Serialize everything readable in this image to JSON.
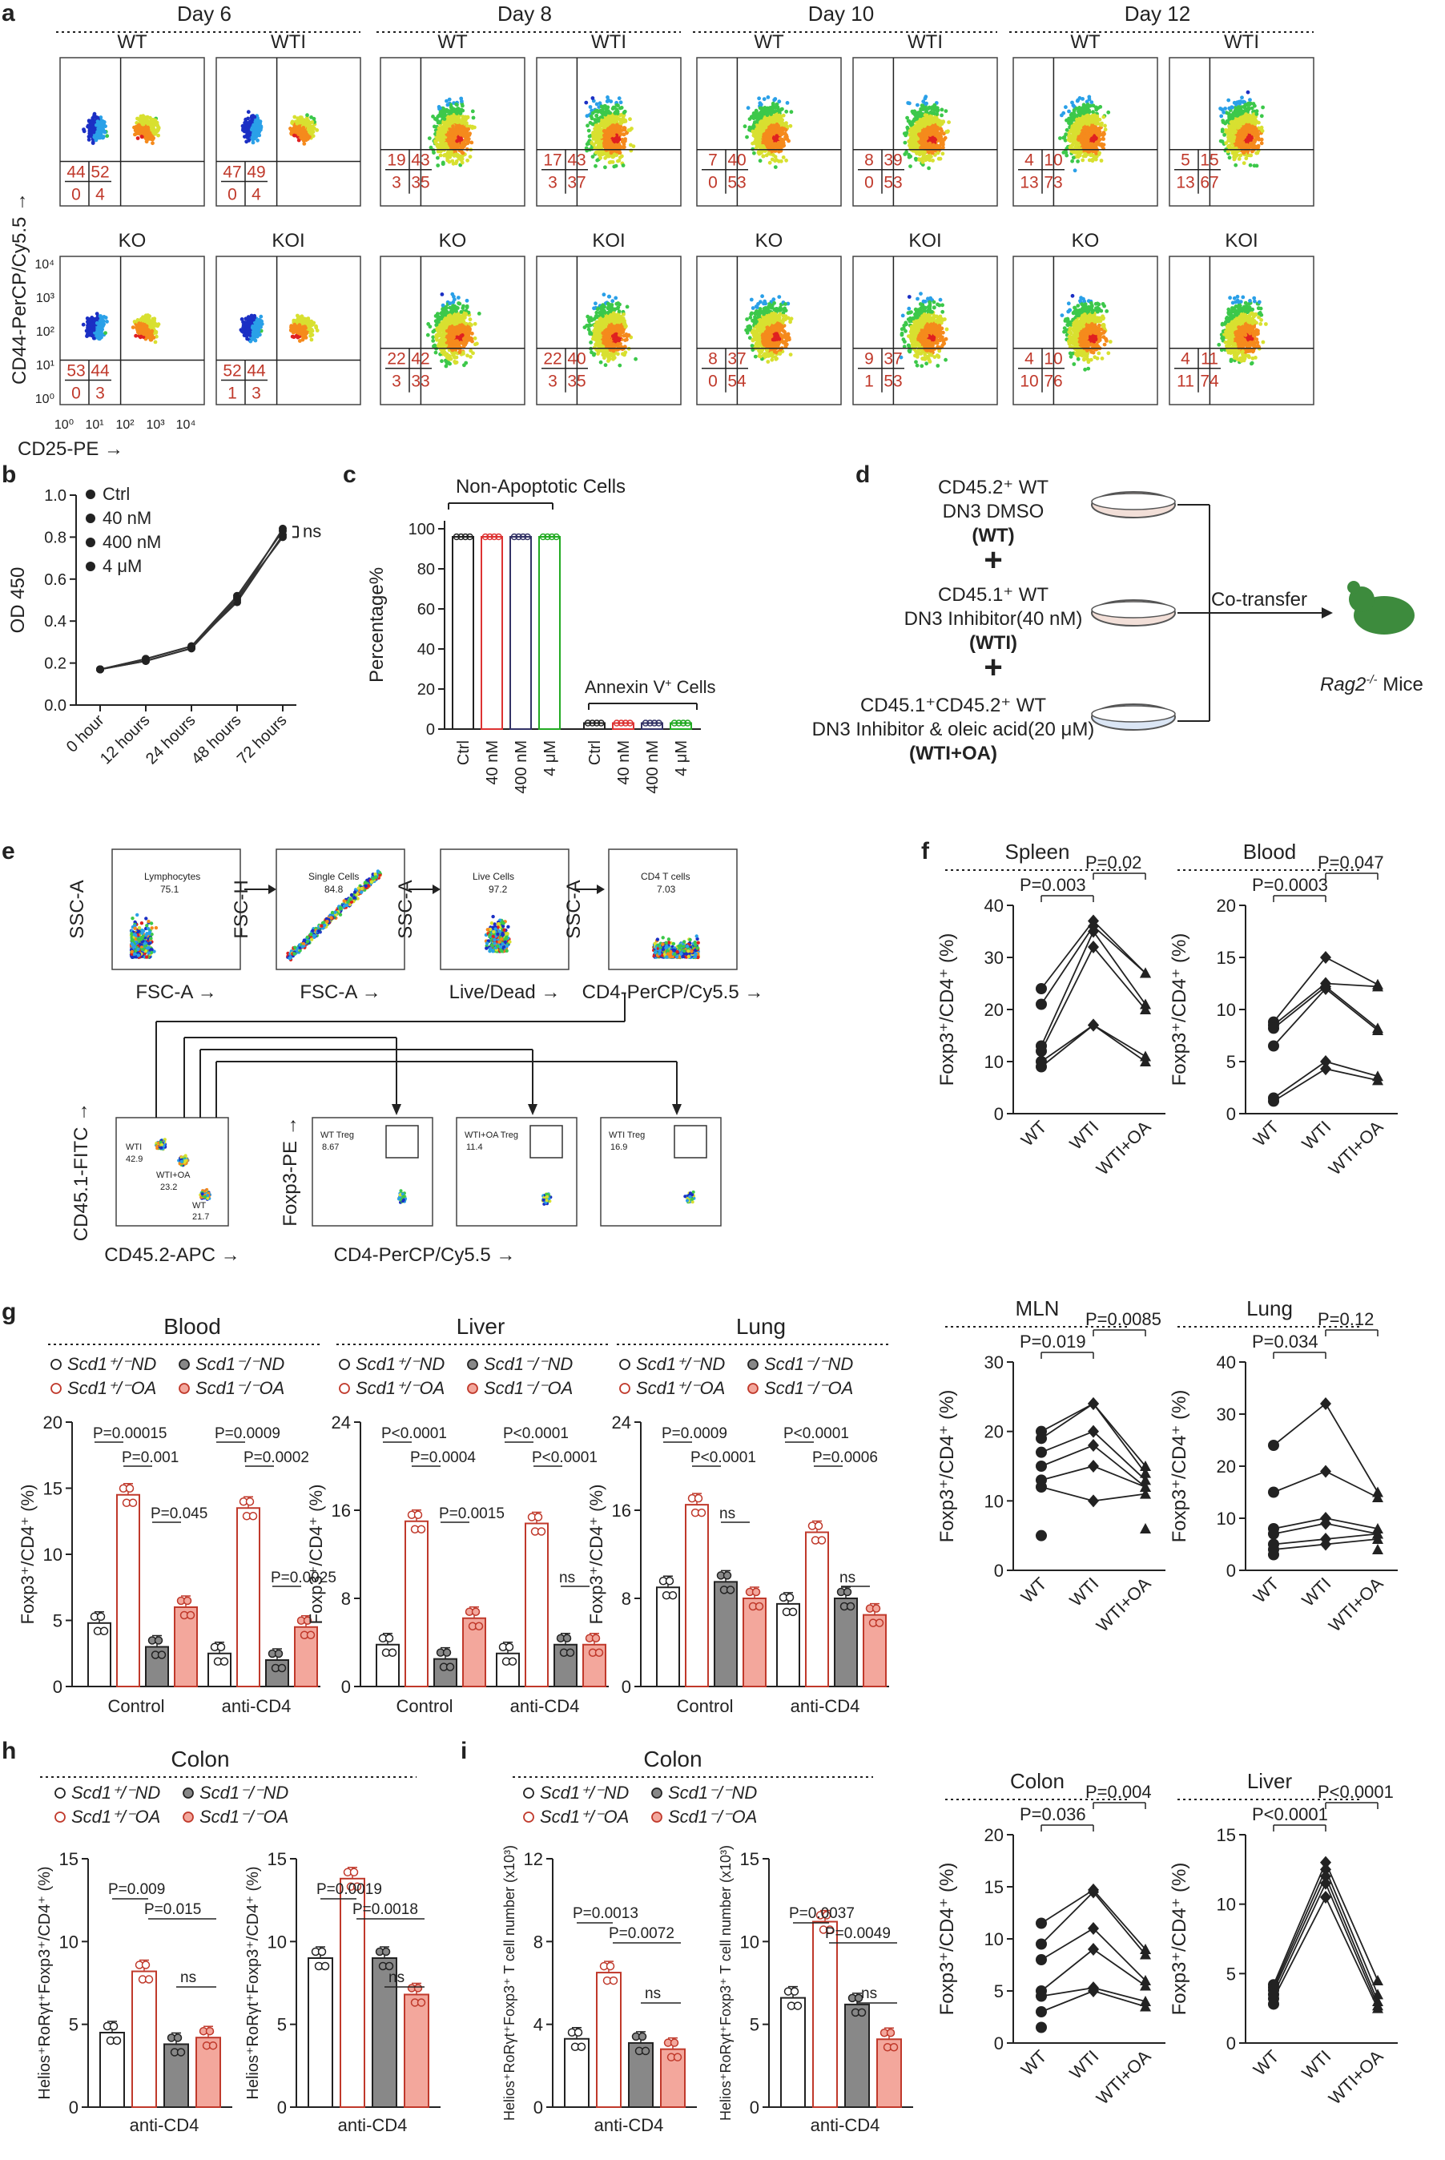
{
  "panel_letters": {
    "a": "a",
    "b": "b",
    "c": "c",
    "d": "d",
    "e": "e",
    "f": "f",
    "g": "g",
    "h": "h",
    "i": "i"
  },
  "colors": {
    "wt": "#ffffff",
    "ko": "#c0392b",
    "oa_grey": "#888888",
    "oa_red": "#f3a79c",
    "flow_red": "#e02020",
    "flow_blue": "#1f2fbf",
    "flow_green": "#2f9e44",
    "mouse": "#3d8b3d"
  },
  "panel_a": {
    "days": [
      "Day 6",
      "Day 8",
      "Day 10",
      "Day 12"
    ],
    "row1_labels": [
      "WT",
      "WTI",
      "WT",
      "WTI",
      "WT",
      "WTI",
      "WT",
      "WTI"
    ],
    "row2_labels": [
      "KO",
      "KOI",
      "KO",
      "KOI",
      "KO",
      "KOI",
      "KO",
      "KOI"
    ],
    "ylabel": "CD44-PerCP/Cy5.5 →",
    "xlabel": "CD25-PE →",
    "y_ticks": [
      "10⁴",
      "10³",
      "10²",
      "10¹",
      "10⁰"
    ],
    "x_ticks": [
      "10⁰",
      "10¹",
      "10²",
      "10³",
      "10⁴"
    ],
    "row1_quadrants": [
      [
        "44",
        "52",
        "0",
        "4"
      ],
      [
        "47",
        "49",
        "0",
        "4"
      ],
      [
        "19",
        "43",
        "3",
        "35"
      ],
      [
        "17",
        "43",
        "3",
        "37"
      ],
      [
        "7",
        "40",
        "0",
        "53"
      ],
      [
        "8",
        "39",
        "0",
        "53"
      ],
      [
        "4",
        "10",
        "13",
        "73"
      ],
      [
        "5",
        "15",
        "13",
        "67"
      ]
    ],
    "row2_quadrants": [
      [
        "53",
        "44",
        "0",
        "3"
      ],
      [
        "52",
        "44",
        "1",
        "3"
      ],
      [
        "22",
        "42",
        "3",
        "33"
      ],
      [
        "22",
        "40",
        "3",
        "35"
      ],
      [
        "8",
        "37",
        "0",
        "54"
      ],
      [
        "9",
        "37",
        "1",
        "53"
      ],
      [
        "4",
        "10",
        "10",
        "76"
      ],
      [
        "4",
        "11",
        "11",
        "74"
      ]
    ]
  },
  "panel_b": {
    "ylabel": "OD 450",
    "legend": [
      "Ctrl",
      "40 nM",
      "400 nM",
      "4 μM"
    ],
    "x_ticks": [
      "0 hour",
      "12 hours",
      "24 hours",
      "48 hours",
      "72 hours"
    ],
    "y_ticks": [
      "0.0",
      "0.2",
      "0.4",
      "0.6",
      "0.8",
      "1.0"
    ],
    "ns": "ns"
  },
  "panel_c": {
    "title": "Non-Apoptotic Cells",
    "annexin": "Annexin V",
    "annexin_suffix": " Cells",
    "ylabel": "Percentage%",
    "y_ticks": [
      "0",
      "20",
      "40",
      "60",
      "80",
      "100"
    ],
    "x_ticks": [
      "Ctrl",
      "40 nM",
      "400 nM",
      "4 μM",
      "Ctrl",
      "40 nM",
      "400 nM",
      "4 μM"
    ]
  },
  "panel_d": {
    "group1_line1": "CD45.2⁺ WT",
    "group1_line2": "DN3 DMSO",
    "group1_tag": "(WT)",
    "group2_line1": "CD45.1⁺ WT",
    "group2_line2": "DN3 Inhibitor(40 nM)",
    "group2_tag": "(WTI)",
    "group3_line1": "CD45.1⁺CD45.2⁺ WT",
    "group3_line2": "DN3 Inhibitor & oleic acid(20 μM)",
    "group3_tag": "(WTI+OA)",
    "plus": "+",
    "cotransfer": "Co-transfer",
    "mice_gene": "Rag2",
    "mice_sup": "-/-",
    "mice_suffix": " Mice"
  },
  "panel_e": {
    "row1_y": [
      "SSC-A",
      "FSC-H",
      "SSC-A",
      "SSC-A"
    ],
    "row1_x": [
      "FSC-A →",
      "FSC-A →",
      "Live/Dead →",
      "CD4-PerCP/Cy5.5 →"
    ],
    "gates": [
      [
        "Lymphocytes",
        "75.1"
      ],
      [
        "Single Cells",
        "84.8"
      ],
      [
        "Live Cells",
        "97.2"
      ],
      [
        "CD4 T cells",
        "7.03"
      ]
    ],
    "cd45_ylabel": "CD45.1-FITC →",
    "cd45_xlabel": "CD45.2-APC →",
    "cd45_gates": [
      [
        "WTI",
        "42.9"
      ],
      [
        "WTI+OA",
        "23.2"
      ],
      [
        "WT",
        "21.7"
      ]
    ],
    "foxp3_ylabel": "Foxp3-PE →",
    "foxp3_xlabel": "CD4-PerCP/Cy5.5 →",
    "treg_gates": [
      [
        "WT Treg",
        "8.67"
      ],
      [
        "WTI+OA Treg",
        "11.4"
      ],
      [
        "WTI Treg",
        "16.9"
      ]
    ]
  },
  "panel_f": {
    "ylabel": "Foxp3⁺/CD4⁺ (%)",
    "x_ticks": [
      "WT",
      "WTI",
      "WTI+OA"
    ],
    "plots": [
      {
        "title": "Spleen",
        "ylim": [
          0,
          40
        ],
        "yticks": [
          "0",
          "10",
          "20",
          "30",
          "40"
        ],
        "p1": "P=0.003",
        "p2": "P=0.02",
        "wt": [
          24,
          21,
          13,
          12,
          10,
          9
        ],
        "wti": [
          37,
          36,
          35,
          32,
          17,
          17
        ],
        "oa": [
          27,
          27,
          21,
          20,
          11,
          10
        ]
      },
      {
        "title": "Blood",
        "ylim": [
          0,
          20
        ],
        "yticks": [
          "0",
          "5",
          "10",
          "15",
          "20"
        ],
        "p1": "P=0.0003",
        "p2": "P=0.047",
        "wt": [
          8.8,
          8.5,
          8.2,
          6.5,
          1.5,
          1.2
        ],
        "wti": [
          15,
          12.5,
          12.2,
          12,
          5,
          4.3
        ],
        "oa": [
          12.4,
          12.2,
          8.2,
          8,
          3.6,
          3.2
        ]
      },
      {
        "title": "MLN",
        "ylim": [
          0,
          30
        ],
        "yticks": [
          "0",
          "10",
          "20",
          "30"
        ],
        "p1": "P=0.019",
        "p2": "P=0.0085",
        "wt": [
          20,
          19,
          17,
          15,
          13,
          12,
          5
        ],
        "wti": [
          24,
          24,
          20,
          18,
          15,
          10
        ],
        "oa": [
          15,
          14,
          13,
          12,
          12,
          11,
          6
        ]
      },
      {
        "title": "Lung",
        "ylim": [
          0,
          40
        ],
        "yticks": [
          "0",
          "10",
          "20",
          "30",
          "40"
        ],
        "p1": "P=0.034",
        "p2": "P=0.12",
        "wt": [
          24,
          15,
          8,
          7,
          5,
          4,
          3
        ],
        "wti": [
          32,
          19,
          10,
          9,
          6,
          5
        ],
        "oa": [
          15,
          14,
          8,
          7,
          7,
          6,
          4
        ]
      },
      {
        "title": "Colon",
        "ylim": [
          0,
          20
        ],
        "yticks": [
          "0",
          "5",
          "10",
          "15",
          "20"
        ],
        "p1": "P=0.036",
        "p2": "P=0.004",
        "wt": [
          11.5,
          9.5,
          8,
          5,
          4.5,
          3,
          1.5
        ],
        "wti": [
          14.7,
          14.5,
          11,
          9,
          5.3,
          5
        ],
        "oa": [
          9,
          8.5,
          6,
          5.5,
          4,
          3.5
        ]
      },
      {
        "title": "Liver",
        "ylim": [
          0,
          15
        ],
        "yticks": [
          "0",
          "5",
          "10",
          "15"
        ],
        "p1": "P<0.0001",
        "p2": "P<0.0001",
        "wt": [
          4.2,
          4,
          3.8,
          3.5,
          3.2,
          2.8
        ],
        "wti": [
          13,
          12.5,
          12,
          11.5,
          10.5
        ],
        "oa": [
          4.5,
          3.5,
          3,
          2.7,
          2.5
        ]
      }
    ]
  },
  "panel_g": {
    "ylabel": "Foxp3⁺/CD4⁺ (%)",
    "legend": [
      "Scd1⁺/⁻ND",
      "Scd1⁺/⁻OA",
      "Scd1⁻/⁻ND",
      "Scd1⁻/⁻OA"
    ],
    "x_groups": [
      "Control",
      "anti-CD4"
    ],
    "plots": [
      {
        "title": "Blood",
        "ylim": [
          0,
          20
        ],
        "yticks": [
          "0",
          "5",
          "10",
          "15",
          "20"
        ],
        "values": [
          [
            4.8,
            14.5,
            3.0,
            6.0
          ],
          [
            2.5,
            13.5,
            2.0,
            4.5
          ]
        ],
        "pvals": [
          "P=0.00015",
          "P=0.001",
          "P=0.045",
          "P=0.0009",
          "P=0.0002",
          "P=0.0025"
        ]
      },
      {
        "title": "Liver",
        "ylim": [
          0,
          24
        ],
        "yticks": [
          "0",
          "8",
          "16",
          "24"
        ],
        "values": [
          [
            3.8,
            15.0,
            2.5,
            6.2
          ],
          [
            3.0,
            14.8,
            3.8,
            3.8
          ]
        ],
        "pvals": [
          "P<0.0001",
          "P=0.0004",
          "P=0.0015",
          "P<0.0001",
          "P<0.0001",
          "ns"
        ]
      },
      {
        "title": "Lung",
        "ylim": [
          0,
          24
        ],
        "yticks": [
          "0",
          "8",
          "16",
          "24"
        ],
        "values": [
          [
            9.0,
            16.5,
            9.5,
            8.0
          ],
          [
            7.5,
            14.0,
            8.0,
            6.5
          ]
        ],
        "pvals": [
          "P=0.0009",
          "P<0.0001",
          "ns",
          "P<0.0001",
          "P=0.0006",
          "ns"
        ]
      }
    ]
  },
  "panel_h": {
    "title": "Colon",
    "ylabel": "Helios⁺RoRγt⁺Foxp3⁺/CD4⁺ (%)",
    "legend": [
      "Scd1⁺/⁻ND",
      "Scd1⁺/⁻OA",
      "Scd1⁻/⁻ND",
      "Scd1⁻/⁻OA"
    ],
    "x_label": "anti-CD4",
    "plots": [
      {
        "ylabel": "Helios⁺RoRγt⁺Foxp3⁺/CD4⁺ (%)",
        "ylim": [
          0,
          15
        ],
        "yticks": [
          "0",
          "5",
          "10",
          "15"
        ],
        "values": [
          4.5,
          8.2,
          3.8,
          4.2
        ],
        "pvals": [
          "P=0.009",
          "P=0.015",
          "ns"
        ]
      },
      {
        "ylabel": "Helios⁺RoRγt⁺Foxp3⁺/CD4⁺ (%)",
        "ylim": [
          0,
          15
        ],
        "yticks": [
          "0",
          "5",
          "10",
          "15"
        ],
        "values": [
          9.0,
          13.8,
          9.0,
          6.8
        ],
        "pvals": [
          "P=0.0019",
          "P=0.0018",
          "ns"
        ]
      }
    ]
  },
  "panel_i": {
    "title": "Colon",
    "ylabel": "Helios⁺RoRγt⁺Foxp3⁺ T cell number (x10³)",
    "legend": [
      "Scd1⁺/⁻ND",
      "Scd1⁺/⁻OA",
      "Scd1⁻/⁻ND",
      "Scd1⁻/⁻OA"
    ],
    "x_label": "anti-CD4",
    "plots": [
      {
        "ylim": [
          0,
          12
        ],
        "yticks": [
          "0",
          "4",
          "8",
          "12"
        ],
        "values": [
          3.3,
          6.5,
          3.1,
          2.8
        ],
        "pvals": [
          "P=0.0013",
          "P=0.0072",
          "ns"
        ]
      },
      {
        "ylim": [
          0,
          15
        ],
        "yticks": [
          "0",
          "5",
          "10",
          "15"
        ],
        "values": [
          6.6,
          11.2,
          6.2,
          4.1
        ],
        "pvals": [
          "P=0.0037",
          "P=0.0049",
          "ns"
        ]
      }
    ]
  }
}
